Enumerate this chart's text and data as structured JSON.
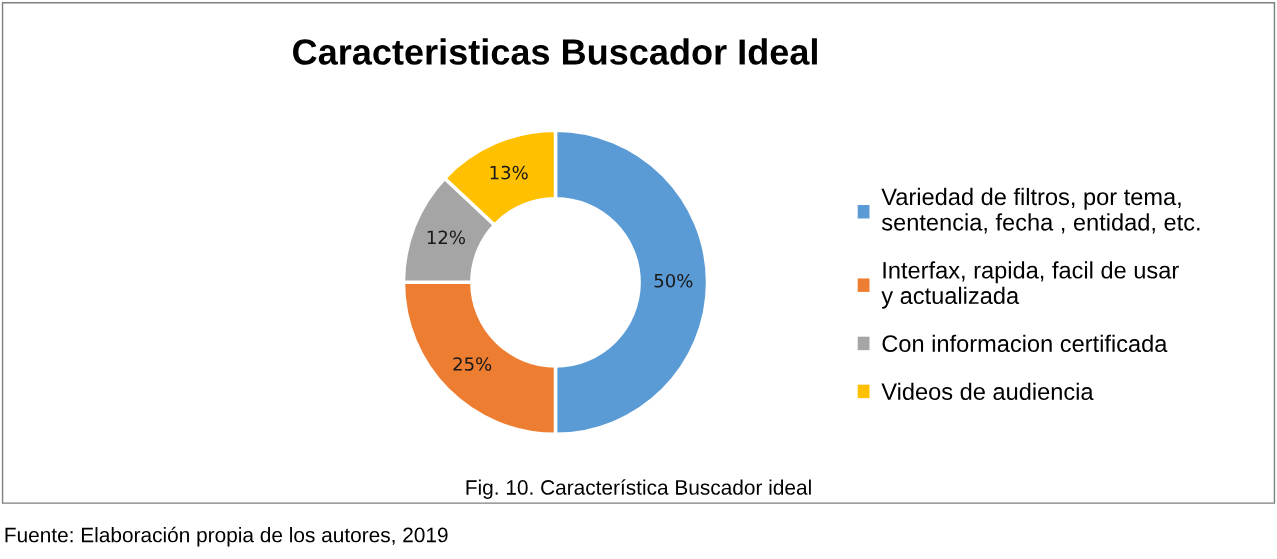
{
  "chart_data": {
    "type": "donut",
    "title": "Caracteristicas Buscador Ideal",
    "categories": [
      "Variedad de filtros, por tema, sentencia, fecha , entidad, etc.",
      "Interfax, rapida, facil de usar y actualizada",
      "Con informacion certificada",
      "Videos de audiencia"
    ],
    "values": [
      50,
      25,
      12,
      13
    ],
    "value_labels": [
      "50%",
      "25%",
      "12%",
      "13%"
    ],
    "colors": [
      "#5b9bd5",
      "#ed7d31",
      "#a5a5a5",
      "#ffc000"
    ],
    "legend": "right",
    "annotations": [
      "Fig. 10. Característica Buscador ideal",
      "Fuente: Elaboración propia de los autores, 2019"
    ]
  }
}
